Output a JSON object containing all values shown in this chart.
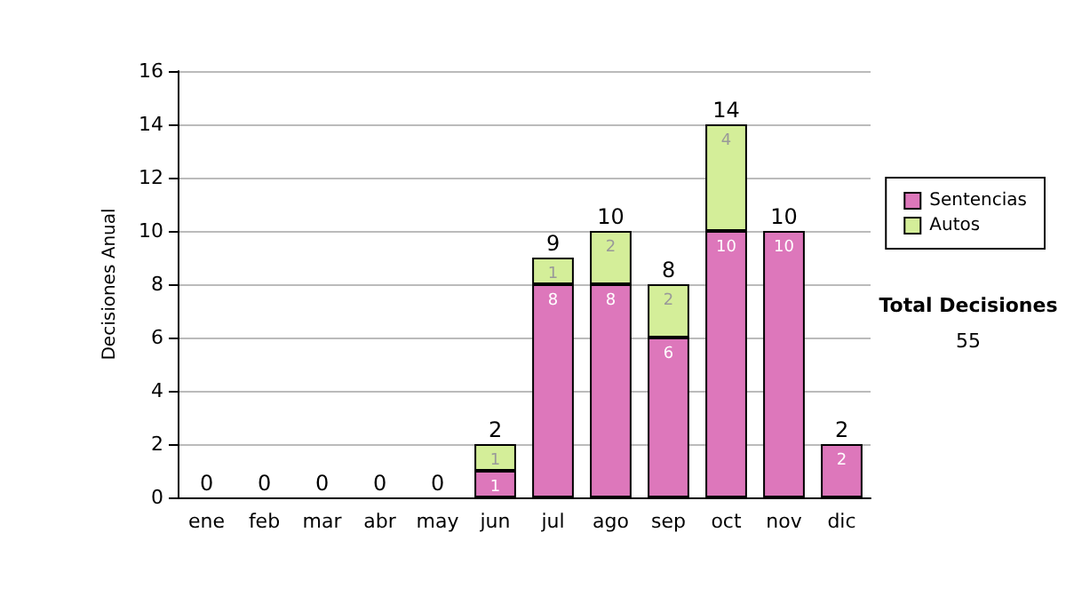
{
  "chart_data": {
    "type": "bar",
    "stacked": true,
    "ylabel": "Decisiones Anual",
    "categories": [
      "ene",
      "feb",
      "mar",
      "abr",
      "may",
      "jun",
      "jul",
      "ago",
      "sep",
      "oct",
      "nov",
      "dic"
    ],
    "series": [
      {
        "name": "Sentencias",
        "color": "#dd77bb",
        "values": [
          0,
          0,
          0,
          0,
          0,
          1,
          8,
          8,
          6,
          10,
          10,
          2
        ],
        "value_labels": [
          null,
          null,
          null,
          null,
          null,
          "1",
          "8",
          "8",
          "6",
          "10",
          "10",
          "2"
        ]
      },
      {
        "name": "Autos",
        "color": "#d4ee99",
        "values": [
          0,
          0,
          0,
          0,
          0,
          1,
          1,
          2,
          2,
          4,
          0,
          0
        ],
        "value_labels": [
          null,
          null,
          null,
          null,
          null,
          "1",
          "1",
          "2",
          "2",
          "4",
          null,
          null
        ]
      }
    ],
    "totals": [
      "0",
      "0",
      "0",
      "0",
      "0",
      "2",
      "9",
      "10",
      "8",
      "14",
      "10",
      "2"
    ],
    "ylim": [
      0,
      16
    ],
    "yticks": [
      0,
      2,
      4,
      6,
      8,
      10,
      12,
      14,
      16
    ],
    "grid": "y",
    "legend": "right",
    "annotations": [
      "Total Decisiones",
      "55"
    ]
  }
}
